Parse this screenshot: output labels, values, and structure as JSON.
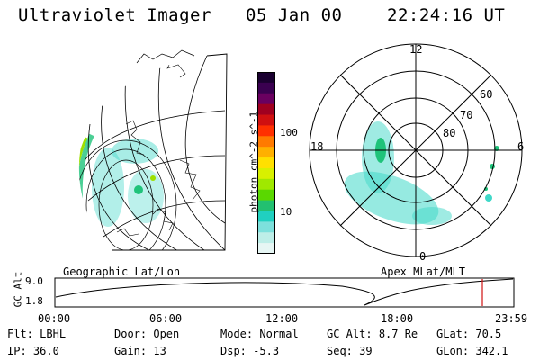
{
  "header": {
    "title": "Ultraviolet Imager",
    "date": "05 Jan 00",
    "time": "22:24:16 UT"
  },
  "colorbar": {
    "unit_label": "photon cm^-2 s^-1",
    "ticks": [
      "100",
      "10"
    ],
    "colors": [
      "#1a0030",
      "#3a0050",
      "#6a0060",
      "#a00020",
      "#d01010",
      "#ff3000",
      "#ff7a00",
      "#ffb000",
      "#ffe000",
      "#d8f000",
      "#a0e800",
      "#5ad800",
      "#22c070",
      "#20d0c0",
      "#7de0dc",
      "#bdeee8",
      "#e6f6f4"
    ]
  },
  "left_panel": {
    "caption": "Geographic Lat/Lon"
  },
  "right_panel": {
    "caption": "Apex  MLat/MLT",
    "mlt_labels": {
      "top": "12",
      "left": "18",
      "right": "6",
      "bottom": "0"
    },
    "lat_labels": [
      "60",
      "70",
      "80"
    ]
  },
  "altitude_plot": {
    "ylabel": "GC Alt",
    "ymax": "9.0",
    "ymin": "1.8",
    "time_ticks": [
      "00:00",
      "06:00",
      "12:00",
      "18:00",
      "23:59"
    ]
  },
  "status": {
    "flt_label": "Flt:",
    "flt_value": "LBHL",
    "ip_label": "IP:",
    "ip_value": "36.0",
    "door_label": "Door:",
    "door_value": "Open",
    "gain_label": "Gain:",
    "gain_value": "13",
    "mode_label": "Mode:",
    "mode_value": "Normal",
    "dsp_label": "Dsp:",
    "dsp_value": "-5.3",
    "gcalt_label": "GC Alt:",
    "gcalt_value": "8.7 Re",
    "seq_label": "Seq:",
    "seq_value": "39",
    "glat_label": "GLat:",
    "glat_value": "70.5",
    "glon_label": "GLon:",
    "glon_value": "342.1"
  },
  "colors": {
    "aurora_green": "#1fc37a",
    "aurora_cyan": "#3fd8c8",
    "aurora_lime": "#9ee000",
    "marker_red": "#d01010"
  }
}
